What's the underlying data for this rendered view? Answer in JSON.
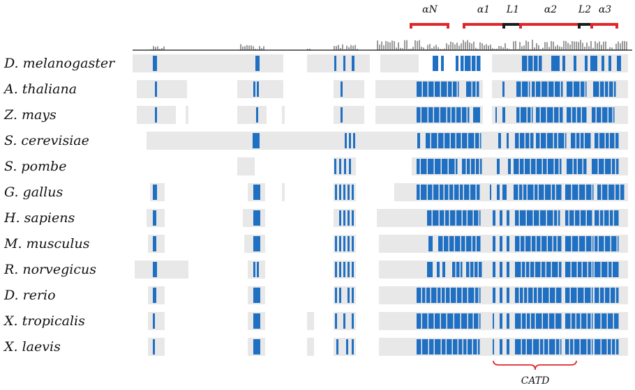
{
  "colors": {
    "background": "#ffffff",
    "gap_region": "#e8e8e8",
    "conserved": "#1f6fc2",
    "histogram": "#9a9a9a",
    "helix_bracket": "#e0262b",
    "loop_bracket": "#1a1a1a",
    "catd_brace": "#e0262b"
  },
  "regions": {
    "helices": [
      "αN",
      "α1",
      "α2",
      "α3"
    ],
    "loops": [
      "L1",
      "L2"
    ],
    "domain_label": "CATD"
  },
  "species": [
    "D. melanogaster",
    "A. thaliana",
    "Z. mays",
    "S. cerevisiae",
    "S. pombe",
    "G. gallus",
    "H. sapiens",
    "M. musculus",
    "R. norvegicus",
    "D. rerio",
    "X. tropicalis",
    "X. laevis"
  ]
}
